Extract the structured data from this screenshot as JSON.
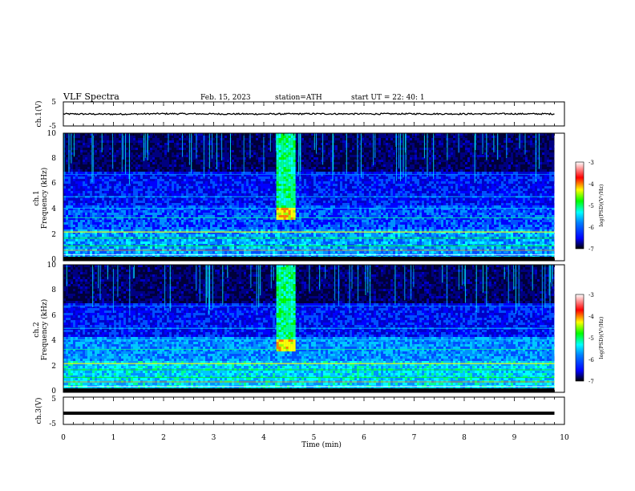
{
  "header": {
    "title": "VLF  Spectra",
    "date": "Feb. 15, 2023",
    "station": "station=ATH",
    "start": "start  UT  =    22: 40: 1"
  },
  "chart_data": [
    {
      "type": "line",
      "panel": "ch.1",
      "ylabel": "ch.1(V)",
      "ylim": [
        -5,
        5
      ],
      "ytick_labels": [
        "5",
        "-5"
      ],
      "x": [
        0,
        1,
        2,
        3,
        4,
        5,
        6,
        7,
        8,
        9,
        9.8
      ],
      "values": [
        0,
        -0.1,
        0.1,
        0,
        -0.05,
        0.05,
        0,
        0.05,
        0,
        0.05,
        0
      ],
      "color": "#000000"
    },
    {
      "type": "heatmap",
      "panel": "ch.1",
      "ylabel": "ch.1\nFrequency (kHz)",
      "ylim": [
        0,
        10
      ],
      "ytick_labels": [
        "0",
        "2",
        "4",
        "6",
        "8",
        "10"
      ],
      "colorbar": {
        "label": "log(PSD)(V²/Hz)",
        "range": [
          -7,
          -3
        ],
        "tick_labels": [
          "-3",
          "-4",
          "-5",
          "-6",
          "-7"
        ]
      },
      "burst": {
        "x": [
          4.25,
          4.6
        ],
        "y": [
          3.3,
          10
        ]
      }
    },
    {
      "type": "heatmap",
      "panel": "ch.2",
      "ylabel": "ch.2\nFrequency (kHz)",
      "ylim": [
        0,
        10
      ],
      "ytick_labels": [
        "0",
        "2",
        "4",
        "6",
        "8",
        "10"
      ],
      "colorbar": {
        "label": "log(PSD)(V²/Hz)",
        "range": [
          -7,
          -3
        ],
        "tick_labels": [
          "-3",
          "-4",
          "-5",
          "-6",
          "-7"
        ]
      },
      "burst": {
        "x": [
          4.25,
          4.6
        ],
        "y": [
          3.3,
          10
        ]
      }
    },
    {
      "type": "line",
      "panel": "ch.3",
      "ylabel": "ch.3(V)",
      "ylim": [
        -5,
        5
      ],
      "ytick_labels": [
        "5",
        "-5"
      ],
      "x": [
        0,
        9.8
      ],
      "values": [
        -1,
        -1
      ],
      "color": "#000000"
    }
  ],
  "xaxis": {
    "label": "Time  (min)",
    "xlim": [
      0,
      10
    ],
    "tick_labels": [
      "0",
      "1",
      "2",
      "3",
      "4",
      "5",
      "6",
      "7",
      "8",
      "9",
      "10"
    ]
  },
  "colors": {
    "colormap": [
      "#000000",
      "#00007f",
      "#0000ff",
      "#0080ff",
      "#00ffff",
      "#00ff00",
      "#ffff00",
      "#ff0000",
      "#ffffff"
    ]
  }
}
